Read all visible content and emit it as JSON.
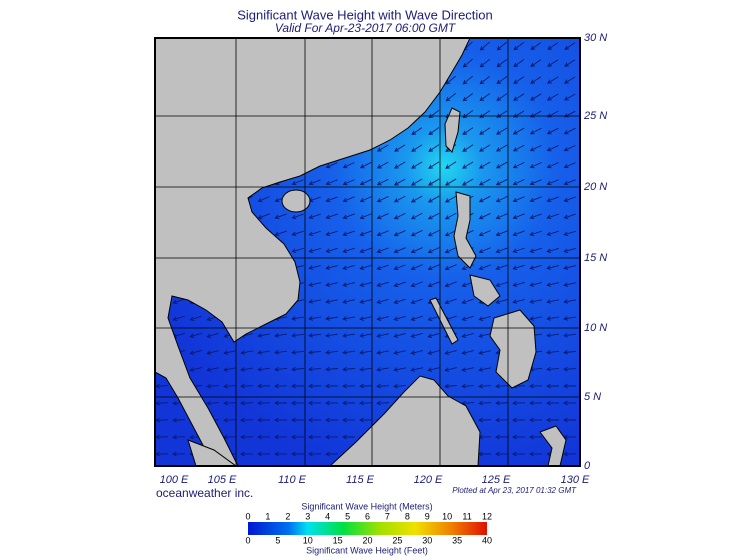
{
  "header": {
    "title": "Significant Wave Height with Wave Direction",
    "subtitle": "Valid For Apr-23-2017 06:00 GMT"
  },
  "map": {
    "lon_labels": [
      "100 E",
      "105 E",
      "110 E",
      "115 E",
      "120 E",
      "125 E",
      "130 E"
    ],
    "lat_labels": [
      "30 N",
      "25 N",
      "20 N",
      "15 N",
      "10 N",
      "5 N",
      "0"
    ]
  },
  "footer": {
    "credit": "oceanweather inc.",
    "plotted": "Plotted at Apr 23, 2017 01:32 GMT"
  },
  "legend": {
    "meters_title": "Significant Wave Height (Meters)",
    "meters_ticks": [
      0,
      1,
      2,
      3,
      4,
      5,
      6,
      7,
      8,
      9,
      10,
      11,
      12
    ],
    "feet_ticks": [
      0,
      5,
      10,
      15,
      20,
      25,
      30,
      35,
      40
    ],
    "feet_title": "Significant Wave Height (Feet)"
  }
}
